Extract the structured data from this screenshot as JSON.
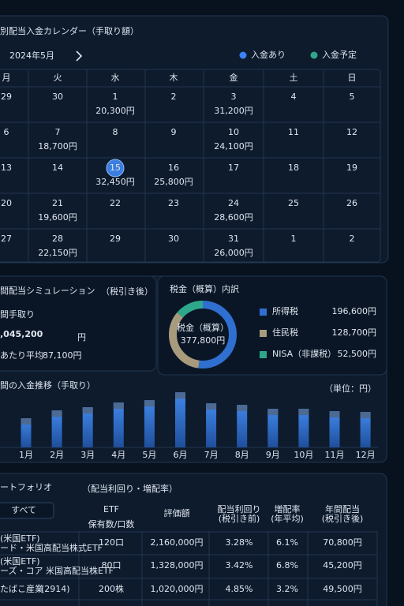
{
  "calendar": {
    "title": "別配当入金カレンダー（手取り額）",
    "month": "2024年5月",
    "legend": [
      {
        "label": "入金あり",
        "color": "#3b82f6"
      },
      {
        "label": "入金予定",
        "color": "#2ea88a"
      }
    ],
    "weekdays": [
      "月",
      "火",
      "水",
      "木",
      "金",
      "土",
      "日"
    ],
    "weeks": [
      [
        {
          "day": "29",
          "muted": true
        },
        {
          "day": "30",
          "muted": true
        },
        {
          "day": "1",
          "amount": "20,300円",
          "status": "paid"
        },
        {
          "day": "2"
        },
        {
          "day": "3",
          "amount": "31,200円",
          "status": "paid"
        },
        {
          "day": "4"
        },
        {
          "day": "5"
        }
      ],
      [
        {
          "day": "6"
        },
        {
          "day": "7",
          "amount": "18,700円",
          "status": "planned"
        },
        {
          "day": "8"
        },
        {
          "day": "9"
        },
        {
          "day": "10",
          "amount": "24,100円",
          "status": "planned"
        },
        {
          "day": "11"
        },
        {
          "day": "12"
        }
      ],
      [
        {
          "day": "13"
        },
        {
          "day": "14"
        },
        {
          "day": "15",
          "amount": "32,450円",
          "status": "paid",
          "today": true
        },
        {
          "day": "16",
          "amount": "25,800円",
          "status": "planned"
        },
        {
          "day": "17"
        },
        {
          "day": "18"
        },
        {
          "day": "19"
        }
      ],
      [
        {
          "day": "20"
        },
        {
          "day": "21",
          "amount": "19,600円",
          "status": "planned"
        },
        {
          "day": "22"
        },
        {
          "day": "23"
        },
        {
          "day": "24",
          "amount": "28,600円",
          "status": "planned"
        },
        {
          "day": "25"
        },
        {
          "day": "26"
        }
      ],
      [
        {
          "day": "27"
        },
        {
          "day": "28",
          "amount": "22,150円",
          "status": "planned"
        },
        {
          "day": "29"
        },
        {
          "day": "30"
        },
        {
          "day": "31",
          "amount": "26,000円",
          "status": "planned"
        },
        {
          "day": "1",
          "muted": true
        },
        {
          "day": "2",
          "muted": true
        }
      ]
    ]
  },
  "simulation": {
    "title": "間配当シミュレーション",
    "note": "（税引き後）",
    "total_label": "間手取り",
    "total": ",045,200",
    "unit": "円",
    "avg_label": "あたり平均",
    "avg": "87,100円"
  },
  "tax": {
    "title": "税金（概算）内訳",
    "center_label": "税金（概算）",
    "center_value": "377,800円",
    "items": [
      {
        "name": "所得税",
        "value": 196600,
        "label": "196,600円",
        "color": "#2f6fd0"
      },
      {
        "name": "住民税",
        "value": 128700,
        "label": "128,700円",
        "color": "#a89a7c"
      },
      {
        "name": "NISA（非課税）",
        "value": 52500,
        "label": "52,500円",
        "color": "#2ea88a"
      }
    ]
  },
  "chart_data": {
    "type": "bar",
    "title": "間の入金推移（手取り）",
    "unit_note": "（単位：円）",
    "categories": [
      "1月",
      "2月",
      "3月",
      "4月",
      "5月",
      "6月",
      "7月",
      "8月",
      "9月",
      "10月",
      "11月",
      "12月"
    ],
    "values": [
      62300,
      79100,
      85800,
      95900,
      101000,
      117800,
      94200,
      90900,
      82500,
      82500,
      77400,
      75800
    ],
    "ylim": [
      0,
      130000
    ],
    "color": "#2f6fd0"
  },
  "portfolio": {
    "title": "ートフォリオ",
    "subtitle": "（配当利回り・増配率）",
    "filter": "すべて",
    "tab": "ETF",
    "headers": [
      [
        "保有数/口数"
      ],
      [
        "評価額"
      ],
      [
        "配当利回り",
        "(税引き前)"
      ],
      [
        "増配率",
        "(年平均)"
      ],
      [
        "年間配当",
        "(税引き後)"
      ]
    ],
    "rows": [
      {
        "name": "(米国ETF)",
        "sub": "ード・米国高配当株式ETF",
        "cells": [
          "120口",
          "2,160,000円",
          "3.28%",
          "6.1%",
          "70,800円"
        ]
      },
      {
        "name": "(米国ETF)",
        "sub": "ーズ・コア 米国高配当株ETF",
        "cells": [
          "80口",
          "1,328,000円",
          "3.42%",
          "6.8%",
          "45,200円"
        ]
      },
      {
        "name": "たばこ産業",
        "sub": "(2914)",
        "sub_inline": true,
        "cells": [
          "200株",
          "1,020,000円",
          "4.85%",
          "3.2%",
          "49,500円"
        ]
      }
    ]
  }
}
